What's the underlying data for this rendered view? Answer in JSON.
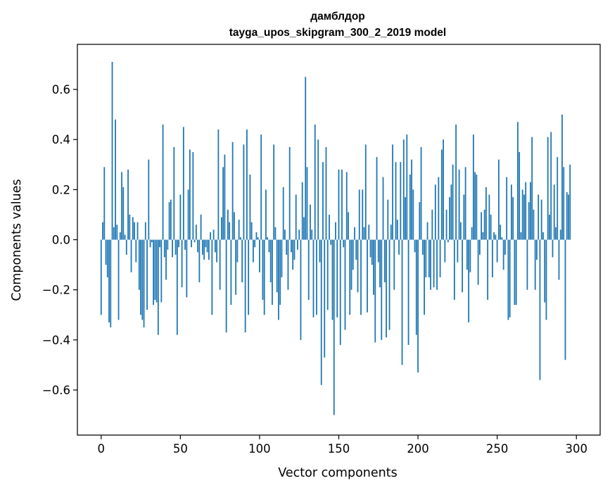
{
  "chart_data": {
    "type": "bar",
    "title": "дамблдор",
    "subtitle": "tayga_upos_skipgram_300_2_2019 model",
    "xlabel": "Vector components",
    "ylabel": "Components values",
    "xlim": [
      -15,
      315
    ],
    "ylim": [
      -0.78,
      0.78
    ],
    "xticks": [
      0,
      50,
      100,
      150,
      200,
      250,
      300
    ],
    "yticks": [
      -0.6,
      -0.4,
      -0.2,
      0.0,
      0.2,
      0.4,
      0.6
    ],
    "xtick_labels": [
      "0",
      "50",
      "100",
      "150",
      "200",
      "250",
      "300"
    ],
    "ytick_labels": [
      "−0.6",
      "−0.4",
      "−0.2",
      "0.0",
      "0.2",
      "0.4",
      "0.6"
    ],
    "grid": false,
    "bar_color": "#1f77b4",
    "values": [
      -0.3,
      0.07,
      0.29,
      -0.1,
      -0.15,
      -0.33,
      -0.35,
      0.71,
      0.05,
      0.48,
      0.06,
      -0.32,
      0.03,
      0.27,
      0.21,
      0.02,
      -0.06,
      0.28,
      0.1,
      -0.13,
      0.09,
      0.07,
      -0.09,
      0.07,
      -0.2,
      -0.3,
      -0.32,
      -0.35,
      0.07,
      -0.28,
      0.32,
      -0.03,
      -0.01,
      -0.26,
      -0.24,
      -0.25,
      -0.38,
      -0.03,
      -0.25,
      0.46,
      -0.07,
      -0.16,
      -0.04,
      0.15,
      0.16,
      -0.07,
      0.37,
      -0.06,
      -0.38,
      -0.03,
      0.18,
      -0.19,
      0.45,
      -0.04,
      -0.23,
      0.2,
      0.36,
      -0.03,
      0.35,
      -0.01,
      0.06,
      -0.05,
      -0.17,
      0.1,
      -0.06,
      -0.08,
      -0.03,
      -0.05,
      -0.08,
      0.03,
      -0.3,
      0.04,
      -0.05,
      -0.09,
      0.44,
      -0.2,
      0.09,
      0.29,
      0.34,
      -0.37,
      0.12,
      0.07,
      -0.26,
      0.39,
      0.11,
      -0.22,
      -0.09,
      0.08,
      0.01,
      -0.17,
      0.38,
      -0.37,
      0.44,
      -0.3,
      0.26,
      0.07,
      -0.09,
      -0.03,
      0.03,
      0.01,
      -0.13,
      0.42,
      -0.24,
      -0.3,
      0.2,
      0.01,
      -0.05,
      -0.17,
      -0.26,
      0.38,
      0.05,
      -0.21,
      -0.32,
      -0.26,
      -0.15,
      0.21,
      0.04,
      -0.06,
      -0.2,
      0.37,
      -0.05,
      -0.12,
      -0.08,
      0.18,
      -0.04,
      0.04,
      -0.4,
      0.23,
      0.09,
      0.65,
      0.29,
      -0.24,
      0.14,
      0.04,
      -0.31,
      0.46,
      -0.3,
      0.4,
      -0.09,
      -0.58,
      0.31,
      -0.47,
      0.37,
      -0.28,
      0.1,
      -0.02,
      -0.32,
      -0.7,
      0.07,
      -0.31,
      0.28,
      -0.42,
      0.28,
      -0.03,
      -0.36,
      0.27,
      0.11,
      -0.3,
      -0.2,
      -0.12,
      0.05,
      -0.08,
      -0.21,
      0.2,
      -0.3,
      0.2,
      0.05,
      0.38,
      -0.29,
      0.06,
      -0.07,
      -0.1,
      -0.22,
      -0.41,
      0.33,
      -0.09,
      -0.19,
      -0.4,
      0.25,
      -0.17,
      -0.39,
      0.16,
      -0.36,
      0.06,
      0.38,
      -0.2,
      0.31,
      0.08,
      -0.06,
      0.31,
      -0.5,
      0.4,
      0.17,
      0.42,
      -0.42,
      0.26,
      0.32,
      0.2,
      -0.05,
      -0.38,
      -0.53,
      0.15,
      0.37,
      -0.06,
      -0.3,
      -0.15,
      0.07,
      -0.15,
      -0.2,
      0.12,
      -0.19,
      0.22,
      -0.2,
      0.25,
      -0.15,
      0.36,
      0.4,
      -0.09,
      0.12,
      -0.01,
      0.17,
      0.22,
      0.3,
      -0.24,
      0.46,
      -0.09,
      0.28,
      0.07,
      -0.21,
      0.18,
      0.29,
      -0.12,
      -0.33,
      -0.13,
      0.05,
      0.42,
      0.27,
      0.26,
      -0.18,
      -0.06,
      0.11,
      0.03,
      0.12,
      0.21,
      -0.24,
      0.18,
      0.1,
      -0.15,
      0.03,
      0.02,
      -0.09,
      0.32,
      0.06,
      0.01,
      -0.12,
      -0.06,
      0.25,
      -0.32,
      -0.31,
      0.22,
      0.17,
      -0.26,
      -0.26,
      0.47,
      0.35,
      0.03,
      0.2,
      0.18,
      0.23,
      -0.2,
      0.15,
      0.23,
      0.41,
      0.12,
      -0.2,
      -0.08,
      0.18,
      -0.56,
      0.16,
      0.03,
      -0.25,
      -0.32,
      0.41,
      0.1,
      0.43,
      -0.07,
      0.22,
      0.05,
      0.33,
      -0.16,
      0.04,
      0.5,
      0.29,
      -0.48,
      0.19,
      0.18,
      0.3
    ]
  }
}
